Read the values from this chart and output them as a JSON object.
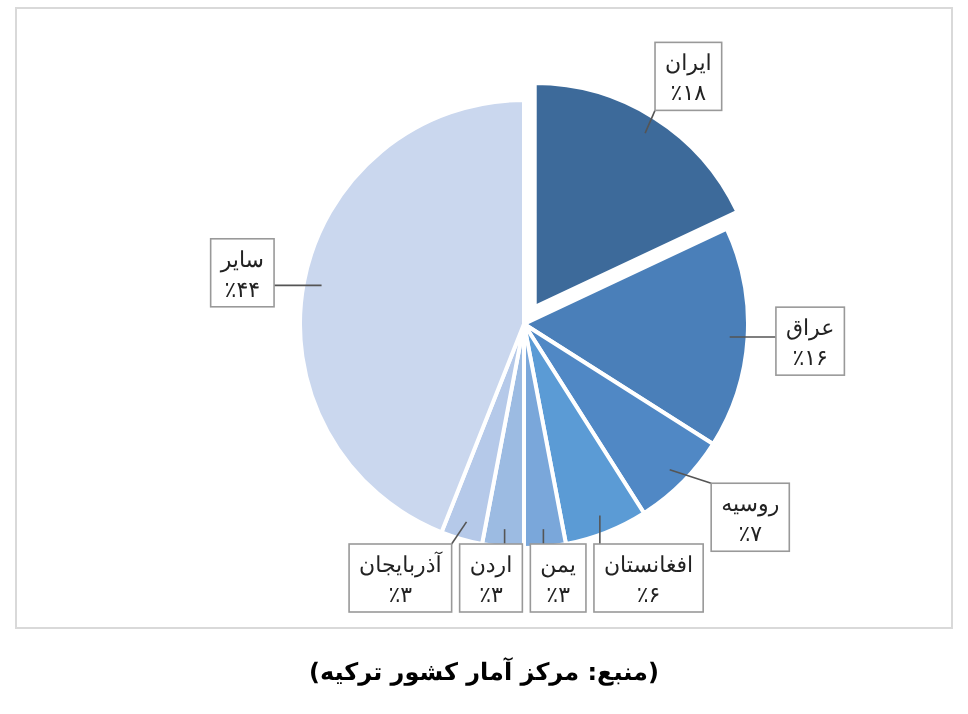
{
  "chart_data": {
    "type": "pie",
    "categories": [
      "ایران",
      "عراق",
      "روسیه",
      "افغانستان",
      "یمن",
      "اردن",
      "آذربایجان",
      "سایر"
    ],
    "values": [
      18,
      16,
      7,
      6,
      3,
      3,
      3,
      44
    ],
    "value_labels": [
      "٪۱۸",
      "٪۱۶",
      "٪۷",
      "٪۶",
      "٪۳",
      "٪۳",
      "٪۳",
      "٪۴۴"
    ],
    "colors": [
      "#3d6a9a",
      "#4a7fb9",
      "#5088c5",
      "#5b9bd5",
      "#7aa7da",
      "#9cbbe2",
      "#b5c9e9",
      "#cad7ee"
    ],
    "annotations": [
      "(منبع: مرکز آمار کشور ترکیه)"
    ],
    "legend": false
  }
}
